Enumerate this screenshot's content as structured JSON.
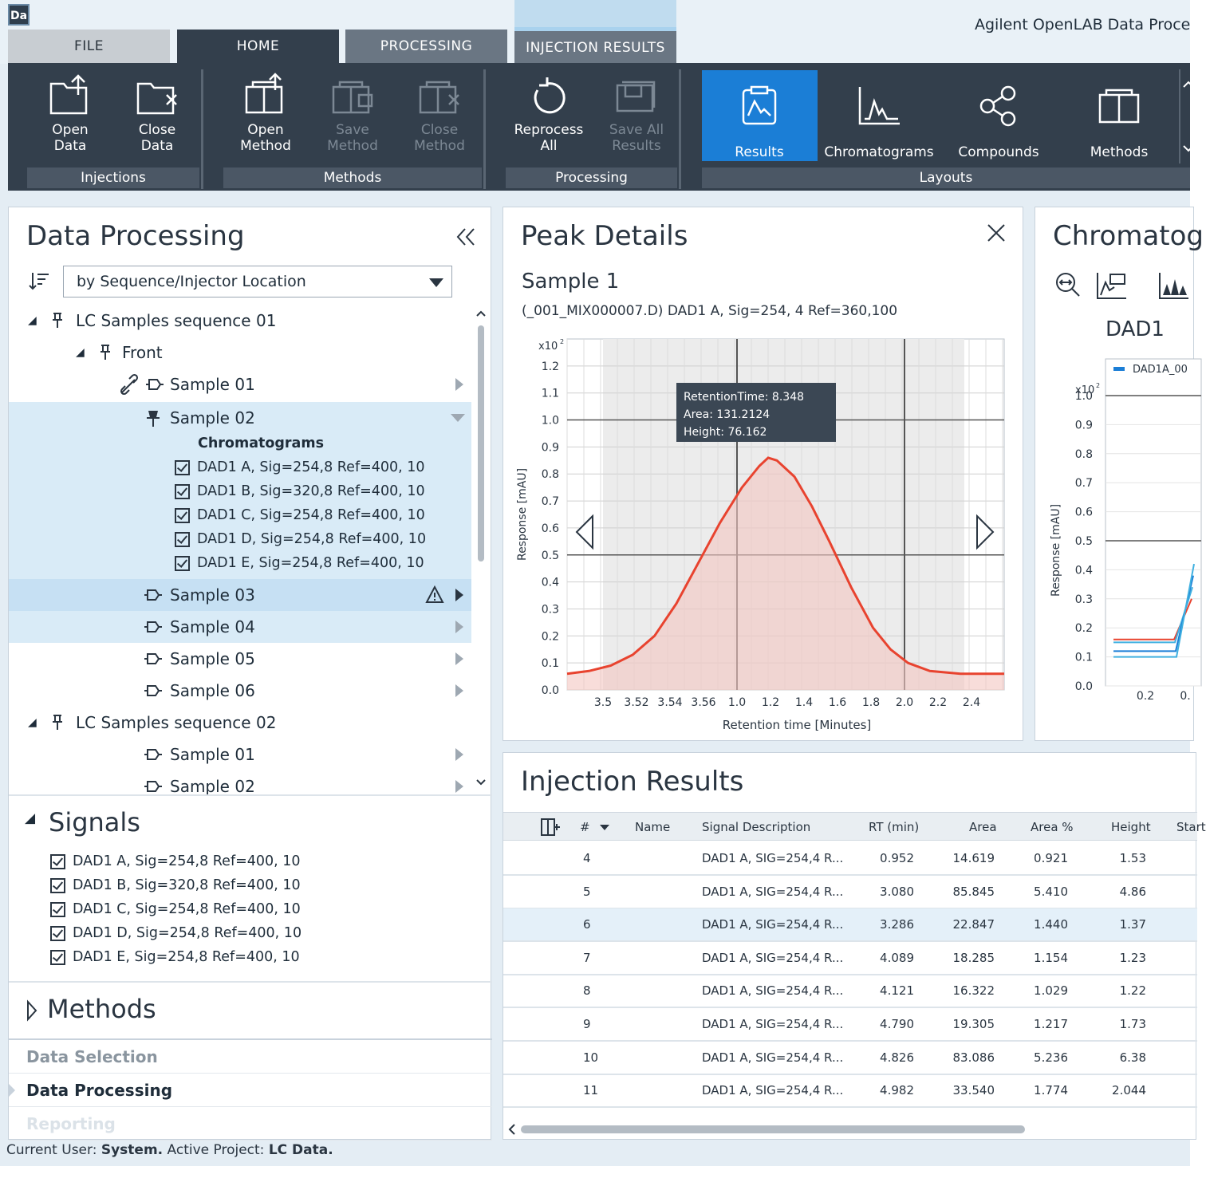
{
  "app": {
    "logo": "Da",
    "title": "Agilent OpenLAB Data Proce"
  },
  "tabs": [
    "FILE",
    "HOME",
    "PROCESSING",
    "INJECTION RESULTS"
  ],
  "ribbon": {
    "buttons": [
      {
        "l1": "Open",
        "l2": "Data",
        "icon": "open-data-icon"
      },
      {
        "l1": "Close",
        "l2": "Data",
        "icon": "close-data-icon"
      },
      {
        "l1": "Open",
        "l2": "Method",
        "icon": "open-method-icon"
      },
      {
        "l1": "Save",
        "l2": "Method",
        "icon": "save-method-icon"
      },
      {
        "l1": "Close",
        "l2": "Method",
        "icon": "close-method-icon"
      },
      {
        "l1": "Reprocess",
        "l2": "All",
        "icon": "reprocess-icon"
      },
      {
        "l1": "Save All",
        "l2": "Results",
        "icon": "save-all-icon"
      }
    ],
    "layouts": [
      "Results",
      "Chromatograms",
      "Compounds",
      "Methods"
    ],
    "groups": [
      "Injections",
      "Methods",
      "Processing",
      "Layouts"
    ]
  },
  "dp": {
    "title": "Data Processing",
    "groupby": "by Sequence/Injector Location",
    "tree": [
      "LC Samples sequence 01",
      "Front",
      "Sample 01",
      "Sample 02",
      "Chromatograms",
      "DAD1 A, Sig=254,8 Ref=400, 10",
      "DAD1 B, Sig=320,8 Ref=400, 10",
      "DAD1 C, Sig=254,8 Ref=400, 10",
      "DAD1 D, Sig=254,8 Ref=400, 10",
      "DAD1 E, Sig=254,8 Ref=400, 10",
      "Sample 03",
      "Sample 04",
      "Sample 05",
      "Sample 06",
      "LC Samples sequence 02",
      "Sample 01",
      "Sample 02"
    ],
    "signals_title": "Signals",
    "signals": [
      "DAD1 A, Sig=254,8 Ref=400, 10",
      "DAD1 B, Sig=320,8 Ref=400, 10",
      "DAD1 C, Sig=254,8 Ref=400, 10",
      "DAD1 D, Sig=254,8 Ref=400, 10",
      "DAD1 E, Sig=254,8 Ref=400, 10"
    ],
    "methods_title": "Methods",
    "nav": [
      "Data Selection",
      "Data Processing",
      "Reporting"
    ]
  },
  "peak": {
    "title": "Peak Details",
    "sample": "Sample 1",
    "signal": "(_001_MIX000007.D) DAD1 A, Sig=254, 4 Ref=360,100",
    "tooltip": [
      "RetentionTime: 8.348",
      "Area: 131.2124",
      "Height: 76.162"
    ]
  },
  "chart_data": [
    {
      "type": "area",
      "title": "",
      "xlabel": "Retention time [Minutes]",
      "ylabel": "Response [mAU]",
      "y_multiplier": "x10",
      "y_multiplier_exp": "2",
      "x_ticks": [
        "3.5",
        "3.52",
        "3.54",
        "3.56",
        "1.0",
        "1.2",
        "1.4",
        "1.6",
        "1.8",
        "2.0",
        "2.2",
        "2.4"
      ],
      "y_ticks": [
        "0.0",
        "0.1",
        "0.2",
        "0.3",
        "0.4",
        "0.5",
        "0.6",
        "0.7",
        "0.8",
        "0.9",
        "1.0",
        "1.1",
        "1.2"
      ],
      "ylim": [
        0,
        1.3
      ],
      "series": [
        {
          "points": [
            [
              0,
              0.06
            ],
            [
              0.5,
              0.07
            ],
            [
              1.0,
              0.09
            ],
            [
              1.5,
              0.13
            ],
            [
              2.0,
              0.2
            ],
            [
              2.5,
              0.32
            ],
            [
              3.0,
              0.47
            ],
            [
              3.5,
              0.62
            ],
            [
              4.0,
              0.75
            ],
            [
              4.4,
              0.83
            ],
            [
              4.6,
              0.86
            ],
            [
              4.8,
              0.85
            ],
            [
              5.2,
              0.79
            ],
            [
              5.6,
              0.68
            ],
            [
              6.0,
              0.55
            ],
            [
              6.5,
              0.38
            ],
            [
              7.0,
              0.23
            ],
            [
              7.4,
              0.15
            ],
            [
              7.8,
              0.1
            ],
            [
              8.3,
              0.07
            ],
            [
              9.0,
              0.06
            ],
            [
              10.0,
              0.06
            ]
          ]
        }
      ]
    },
    {
      "type": "line",
      "title": "DAD1",
      "ylabel": "Response [mAU]",
      "y_multiplier": "x10",
      "y_multiplier_exp": "2",
      "legend": [
        "DAD1A_00"
      ],
      "y_ticks": [
        "0.0",
        "0.1",
        "0.2",
        "0.3",
        "0.4",
        "0.5",
        "0.6",
        "0.7",
        "0.8",
        "0.9",
        "1.0"
      ],
      "x_ticks": [
        "0.2",
        "0."
      ],
      "colors": [
        "#e8432f",
        "#1b7ed6",
        "#40b0e0"
      ]
    }
  ],
  "chrom": {
    "title": "Chromatog"
  },
  "inj": {
    "title": "Injection Results",
    "columns": [
      "#",
      "Name",
      "Signal Description",
      "RT (min)",
      "Area",
      "Area %",
      "Height",
      "Start"
    ],
    "rows": [
      [
        "4",
        "",
        "DAD1 A, SIG=254,4 R...",
        "0.952",
        "14.619",
        "0.921",
        "1.53"
      ],
      [
        "5",
        "",
        "DAD1 A, SIG=254,4 R...",
        "3.080",
        "85.845",
        "5.410",
        "4.86"
      ],
      [
        "6",
        "",
        "DAD1 A, SIG=254,4 R...",
        "3.286",
        "22.847",
        "1.440",
        "1.37"
      ],
      [
        "7",
        "",
        "DAD1 A, SIG=254,4 R...",
        "4.089",
        "18.285",
        "1.154",
        "1.23"
      ],
      [
        "8",
        "",
        "DAD1 A, SIG=254,4 R...",
        "4.121",
        "16.322",
        "1.029",
        "1.22"
      ],
      [
        "9",
        "",
        "DAD1 A, SIG=254,4 R...",
        "4.790",
        "19.305",
        "1.217",
        "1.73"
      ],
      [
        "10",
        "",
        "DAD1 A, SIG=254,4 R...",
        "4.826",
        "83.086",
        "5.236",
        "6.38"
      ],
      [
        "11",
        "",
        "DAD1 A, SIG=254,4 R...",
        "4.982",
        "33.540",
        "1.774",
        "2.044"
      ]
    ]
  },
  "status": {
    "label1": "Current User:",
    "user": "System.",
    "label2": "Active Project:",
    "project": "LC Data."
  }
}
